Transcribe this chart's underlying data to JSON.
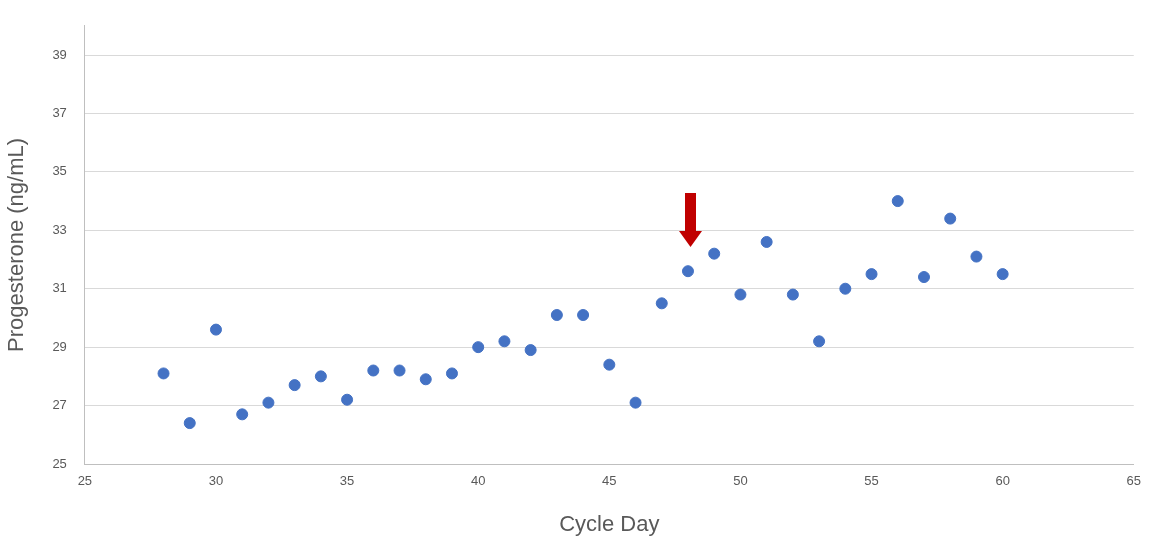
{
  "chart_data": {
    "type": "scatter",
    "xlabel": "Cycle Day",
    "ylabel": "Progesterone (ng/mL)",
    "x": [
      28,
      29,
      30,
      31,
      32,
      33,
      34,
      35,
      36,
      37,
      38,
      39,
      40,
      41,
      42,
      43,
      44,
      45,
      46,
      47,
      48,
      49,
      50,
      51,
      52,
      53,
      54,
      55,
      56,
      57,
      58,
      59,
      60
    ],
    "series": [
      {
        "color": "#4472c4",
        "values": [
          28.1,
          26.4,
          29.6,
          26.7,
          27.1,
          27.7,
          28.0,
          27.2,
          28.2,
          28.2,
          27.9,
          28.1,
          29.0,
          29.2,
          28.9,
          30.1,
          30.1,
          28.4,
          27.1,
          30.5,
          31.6,
          32.2,
          30.8,
          32.6,
          30.8,
          29.2,
          31.0,
          31.5,
          34.0,
          31.4,
          33.4,
          32.1,
          31.5
        ]
      }
    ],
    "xlim": [
      25,
      65
    ],
    "xticks": [
      25,
      30,
      35,
      40,
      45,
      50,
      55,
      60,
      65
    ],
    "ylim": [
      25,
      40
    ],
    "yticks": [
      25,
      27,
      29,
      31,
      33,
      35,
      37,
      39
    ],
    "grid": "y",
    "legend": false,
    "marker": "circle"
  }
}
